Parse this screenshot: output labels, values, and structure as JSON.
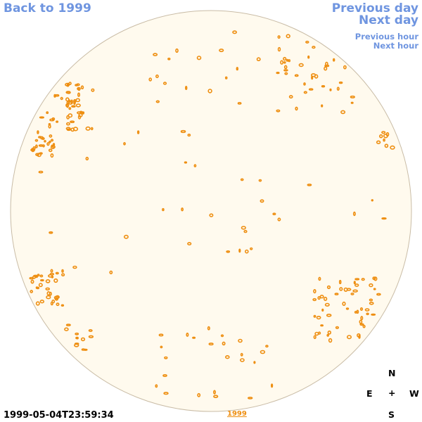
{
  "nav": {
    "back": "Back to 1999",
    "previous_day": "Previous day",
    "next_day": "Next day",
    "previous_hour": "Previous hour",
    "next_hour": "Next hour"
  },
  "timestamp": "1999-05-04T23:59:34",
  "year_link": "1999",
  "compass": {
    "north": "N",
    "east": "E",
    "center": "+",
    "west": "W",
    "south": "S"
  },
  "colors": {
    "disk_fill": "#fffaee",
    "disk_edge": "#c9bca6",
    "feature": "#ee8e10",
    "nav_link": "#6f95e0"
  }
}
